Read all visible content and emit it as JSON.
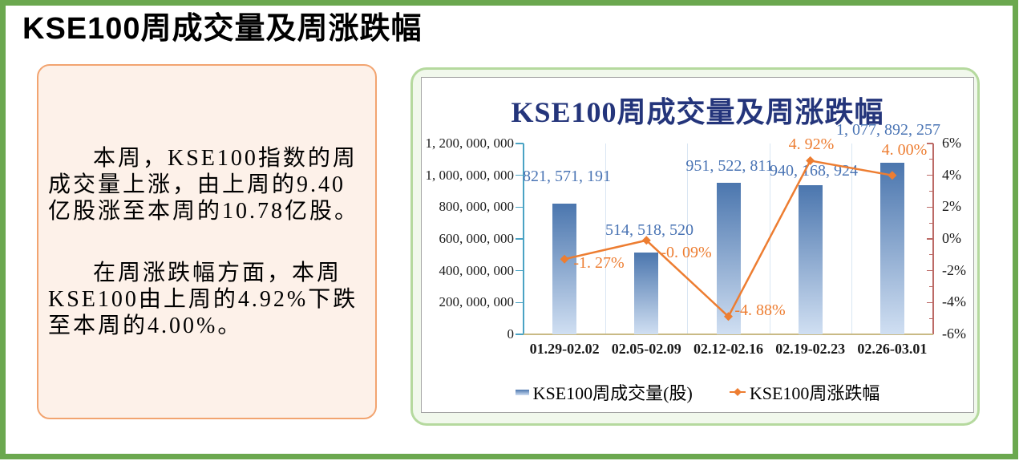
{
  "header": {
    "title": "KSE100周成交量及周涨跌幅"
  },
  "summary_panel": {
    "paragraphs": [
      "本周，KSE100指数的周成交量上涨，由上周的9.40亿股涨至本周的10.78亿股。",
      "在周涨跌幅方面，本周KSE100由上周的4.92%下跌至本周的4.00%。"
    ]
  },
  "chart_data": {
    "type": "combo",
    "title": "KSE100周成交量及周涨跌幅",
    "categories": [
      "01.29-02.02",
      "02.05-02.09",
      "02.12-02.16",
      "02.19-02.23",
      "02.26-03.01"
    ],
    "series": [
      {
        "name": "KSE100周成交量(股)",
        "type": "bar",
        "axis": "left",
        "values": [
          821571191,
          514518520,
          951522811,
          940168924,
          1077892257
        ],
        "labels": [
          "821, 571, 191",
          "514, 518, 520",
          "951, 522, 811",
          "940, 168, 924",
          "1, 077, 892, 257"
        ]
      },
      {
        "name": "KSE100周涨跌幅",
        "type": "line",
        "axis": "right",
        "values": [
          -1.27,
          -0.09,
          -4.88,
          4.92,
          4.0
        ],
        "labels": [
          "-1. 27%",
          "-0. 09%",
          "-4. 88%",
          "4. 92%",
          "4. 00%"
        ]
      }
    ],
    "left_axis": {
      "min": 0,
      "max": 1200000000,
      "step": 200000000,
      "tick_labels_top_to_bottom": [
        "1, 200, 000, 000",
        "1, 000, 000, 000",
        "800, 000, 000",
        "600, 000, 000",
        "400, 000, 000",
        "200, 000, 000",
        "0"
      ]
    },
    "right_axis": {
      "min": -6,
      "max": 6,
      "step": 2,
      "minor_step": 1,
      "tick_labels_top_to_bottom": [
        "6%",
        "4%",
        "2%",
        "0%",
        "-2%",
        "-4%",
        "-6%"
      ]
    },
    "legend_position": "bottom",
    "grid": "vertical-only"
  },
  "colors": {
    "page_border": "#6BA84F",
    "card_border": "#B5D99E",
    "card_bg": "#F1F8EC",
    "chart_border": "#A3A3A3",
    "chart_bg": "#FFFFFF",
    "panel_border": "#F2A470",
    "panel_bg": "#FDF1E9",
    "chart_title": "#24357B",
    "bar_top": "#4B76AE",
    "bar_bottom": "#D0DFF2",
    "bar_label": "#4A74B4",
    "line": "#ED7D31",
    "left_axis": "#4AA3C4",
    "right_axis": "#BC6A66",
    "bottom_axis": "#C9BA85",
    "gridline": "#D9E6F3",
    "axis_text": "#1A1A1A"
  }
}
